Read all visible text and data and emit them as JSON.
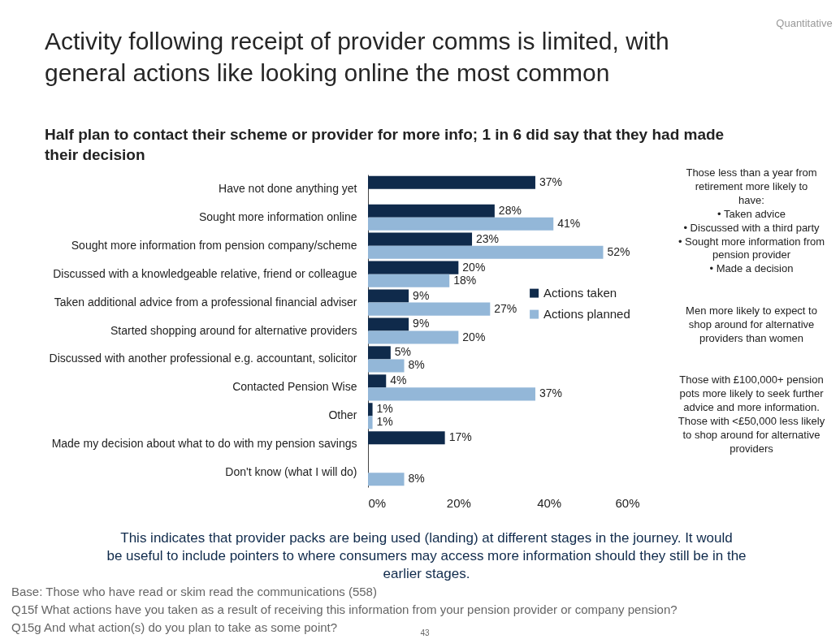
{
  "chart_data": {
    "type": "bar",
    "orientation": "horizontal",
    "title": "Activity following receipt of provider comms is limited, with general actions like looking online the most common",
    "subtitle": "Half plan to contact their scheme or provider for more info; 1 in 6 did say that they had made their decision",
    "categories": [
      "Have not done anything yet",
      "Sought more information online",
      "Sought more information from pension company/scheme",
      "Discussed with a knowledgeable relative, friend or colleague",
      "Taken additional advice from a professional financial adviser",
      "Started shopping around for alternative providers",
      "Discussed with another professional e.g. accountant, solicitor",
      "Contacted Pension Wise",
      "Other",
      "Made my decision about what to do with my pension savings",
      "Don't know (what I will do)"
    ],
    "series": [
      {
        "name": "Actions taken",
        "color": "#0f2a4b",
        "values": [
          37,
          28,
          23,
          20,
          9,
          9,
          5,
          4,
          1,
          17,
          null
        ],
        "value_labels": [
          "37%",
          "28%",
          "23%",
          "20%",
          "9%",
          "9%",
          "5%",
          "4%",
          "1%",
          "17%",
          null
        ]
      },
      {
        "name": "Actions planned",
        "color": "#93b7d8",
        "values": [
          null,
          41,
          52,
          18,
          27,
          20,
          8,
          37,
          1,
          null,
          8
        ],
        "value_labels": [
          null,
          "41%",
          "52%",
          "18%",
          "27%",
          "20%",
          "8%",
          "37%",
          "1%",
          null,
          "8%"
        ]
      }
    ],
    "xlim": [
      0,
      60
    ],
    "xticks": [
      {
        "value": 0,
        "label": "0%"
      },
      {
        "value": 20,
        "label": "20%"
      },
      {
        "value": 40,
        "label": "40%"
      },
      {
        "value": 60,
        "label": "60%"
      }
    ],
    "legend": "right",
    "annotations": [
      "Quantitative",
      "Those less than a year from retirement more likely to have:\n• Taken advice\n• Discussed with a third party\n• Sought more information from pension provider\n• Made a decision",
      "Men more likely to expect to shop around for alternative providers than women",
      "Those with £100,000+ pension pots more likely to seek further advice and more information. Those with <£50,000 less likely to shop around for alternative providers",
      "This indicates that provider packs are being used (landing) at different stages in the journey. It would be useful to include pointers to where consumers may access more information should they still be in the earlier stages.",
      "Base: Those who have read or skim read the communications (558)",
      "Q15f What actions have you taken as a result of receiving this information from your pension provider or company pension?",
      "Q15g And what action(s) do you plan to take as some point?",
      "43"
    ]
  }
}
